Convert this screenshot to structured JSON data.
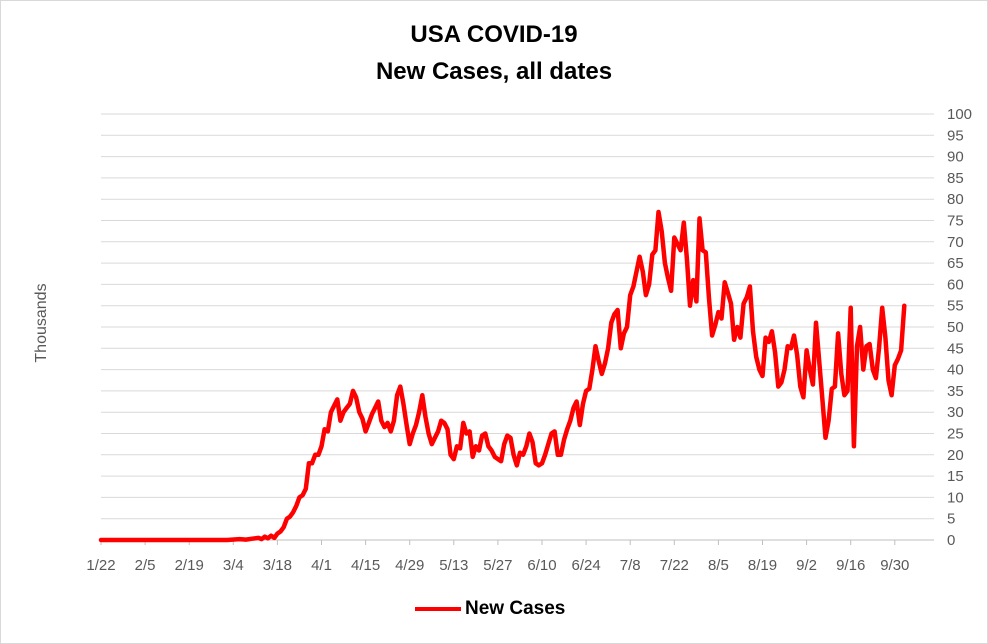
{
  "chart_data": {
    "type": "line",
    "title": "USA COVID-19",
    "subtitle": "New Cases, all dates",
    "ylabel": "Thousands",
    "xlabel": "",
    "ylim": [
      0,
      100
    ],
    "ytick_step": 5,
    "y_ticks": [
      "0",
      "5",
      "10",
      "15",
      "20",
      "25",
      "30",
      "35",
      "40",
      "45",
      "50",
      "55",
      "60",
      "65",
      "70",
      "75",
      "80",
      "85",
      "90",
      "95",
      "100"
    ],
    "x_tick_labels": [
      "1/22",
      "2/5",
      "2/19",
      "3/4",
      "3/18",
      "4/1",
      "4/15",
      "4/29",
      "5/13",
      "5/27",
      "6/10",
      "6/24",
      "7/8",
      "7/22",
      "8/5",
      "8/19",
      "9/2",
      "9/16",
      "9/30"
    ],
    "x_tick_days": [
      0,
      14,
      28,
      42,
      56,
      70,
      84,
      98,
      112,
      126,
      140,
      154,
      168,
      182,
      196,
      210,
      224,
      238,
      252
    ],
    "x_range_days": [
      0,
      254
    ],
    "y_axis_position": "right",
    "grid": true,
    "legend_position": "bottom",
    "series": [
      {
        "name": "New Cases",
        "color": "#ff0000",
        "points": [
          [
            0,
            0
          ],
          [
            10,
            0
          ],
          [
            20,
            0
          ],
          [
            30,
            0
          ],
          [
            40,
            0
          ],
          [
            44,
            0.2
          ],
          [
            46,
            0.1
          ],
          [
            48,
            0.3
          ],
          [
            50,
            0.5
          ],
          [
            51,
            0.2
          ],
          [
            52,
            0.8
          ],
          [
            53,
            0.4
          ],
          [
            54,
            1.0
          ],
          [
            55,
            0.5
          ],
          [
            56,
            1.5
          ],
          [
            57,
            2.0
          ],
          [
            58,
            3.0
          ],
          [
            59,
            5.0
          ],
          [
            60,
            5.5
          ],
          [
            61,
            6.5
          ],
          [
            62,
            8.0
          ],
          [
            63,
            10.0
          ],
          [
            64,
            10.5
          ],
          [
            65,
            12.0
          ],
          [
            66,
            18.0
          ],
          [
            67,
            18.0
          ],
          [
            68,
            20.0
          ],
          [
            69,
            20.0
          ],
          [
            70,
            22.0
          ],
          [
            71,
            26.0
          ],
          [
            72,
            25.5
          ],
          [
            73,
            30.0
          ],
          [
            74,
            31.5
          ],
          [
            75,
            33.0
          ],
          [
            76,
            28.0
          ],
          [
            77,
            30.0
          ],
          [
            78,
            31.0
          ],
          [
            79,
            32.0
          ],
          [
            80,
            35.0
          ],
          [
            81,
            33.5
          ],
          [
            82,
            30.0
          ],
          [
            83,
            28.5
          ],
          [
            84,
            25.5
          ],
          [
            85,
            27.5
          ],
          [
            86,
            29.5
          ],
          [
            87,
            31.0
          ],
          [
            88,
            32.5
          ],
          [
            89,
            28.0
          ],
          [
            90,
            26.5
          ],
          [
            91,
            27.5
          ],
          [
            92,
            25.5
          ],
          [
            93,
            28.0
          ],
          [
            94,
            34.0
          ],
          [
            95,
            36.0
          ],
          [
            96,
            32.0
          ],
          [
            97,
            27.0
          ],
          [
            98,
            22.5
          ],
          [
            99,
            25.0
          ],
          [
            100,
            27.0
          ],
          [
            101,
            30.0
          ],
          [
            102,
            34.0
          ],
          [
            103,
            29.0
          ],
          [
            104,
            25.0
          ],
          [
            105,
            22.5
          ],
          [
            106,
            24.0
          ],
          [
            107,
            25.5
          ],
          [
            108,
            28.0
          ],
          [
            109,
            27.5
          ],
          [
            110,
            26.0
          ],
          [
            111,
            20.0
          ],
          [
            112,
            19.0
          ],
          [
            113,
            22.0
          ],
          [
            114,
            21.5
          ],
          [
            115,
            27.5
          ],
          [
            116,
            25.0
          ],
          [
            117,
            25.5
          ],
          [
            118,
            19.5
          ],
          [
            119,
            22.0
          ],
          [
            120,
            21.0
          ],
          [
            121,
            24.5
          ],
          [
            122,
            25.0
          ],
          [
            123,
            22.0
          ],
          [
            124,
            21.0
          ],
          [
            125,
            19.5
          ],
          [
            126,
            19.0
          ],
          [
            127,
            18.5
          ],
          [
            128,
            22.5
          ],
          [
            129,
            24.5
          ],
          [
            130,
            24.0
          ],
          [
            131,
            20.0
          ],
          [
            132,
            17.5
          ],
          [
            133,
            20.5
          ],
          [
            134,
            20.0
          ],
          [
            135,
            22.0
          ],
          [
            136,
            25.0
          ],
          [
            137,
            23.0
          ],
          [
            138,
            18.0
          ],
          [
            139,
            17.5
          ],
          [
            140,
            18.0
          ],
          [
            141,
            20.0
          ],
          [
            142,
            22.5
          ],
          [
            143,
            25.0
          ],
          [
            144,
            25.5
          ],
          [
            145,
            20.0
          ],
          [
            146,
            20.0
          ],
          [
            147,
            23.5
          ],
          [
            148,
            26.0
          ],
          [
            149,
            28.0
          ],
          [
            150,
            31.0
          ],
          [
            151,
            32.5
          ],
          [
            152,
            27.0
          ],
          [
            153,
            32.0
          ],
          [
            154,
            35.0
          ],
          [
            155,
            35.5
          ],
          [
            156,
            40.0
          ],
          [
            157,
            45.5
          ],
          [
            158,
            42.0
          ],
          [
            159,
            39.0
          ],
          [
            160,
            41.5
          ],
          [
            161,
            45.0
          ],
          [
            162,
            51.0
          ],
          [
            163,
            53.0
          ],
          [
            164,
            54.0
          ],
          [
            165,
            45.0
          ],
          [
            166,
            48.5
          ],
          [
            167,
            50.0
          ],
          [
            168,
            57.5
          ],
          [
            169,
            59.5
          ],
          [
            170,
            63.0
          ],
          [
            171,
            66.5
          ],
          [
            172,
            63.0
          ],
          [
            173,
            57.5
          ],
          [
            174,
            60.0
          ],
          [
            175,
            67.0
          ],
          [
            176,
            68.0
          ],
          [
            177,
            77.0
          ],
          [
            178,
            72.5
          ],
          [
            179,
            65.0
          ],
          [
            180,
            61.5
          ],
          [
            181,
            58.5
          ],
          [
            182,
            71.0
          ],
          [
            183,
            69.5
          ],
          [
            184,
            68.0
          ],
          [
            185,
            74.5
          ],
          [
            186,
            66.0
          ],
          [
            187,
            55.0
          ],
          [
            188,
            61.0
          ],
          [
            189,
            56.0
          ],
          [
            190,
            75.5
          ],
          [
            191,
            68.0
          ],
          [
            192,
            67.5
          ],
          [
            193,
            57.0
          ],
          [
            194,
            48.0
          ],
          [
            195,
            50.5
          ],
          [
            196,
            53.5
          ],
          [
            197,
            52.0
          ],
          [
            198,
            60.5
          ],
          [
            199,
            58.0
          ],
          [
            200,
            55.5
          ],
          [
            201,
            47.0
          ],
          [
            202,
            50.0
          ],
          [
            203,
            47.5
          ],
          [
            204,
            55.5
          ],
          [
            205,
            57.0
          ],
          [
            206,
            59.5
          ],
          [
            207,
            49.0
          ],
          [
            208,
            43.0
          ],
          [
            209,
            40.0
          ],
          [
            210,
            38.5
          ],
          [
            211,
            47.5
          ],
          [
            212,
            46.5
          ],
          [
            213,
            49.0
          ],
          [
            214,
            44.0
          ],
          [
            215,
            36.0
          ],
          [
            216,
            37.0
          ],
          [
            217,
            40.0
          ],
          [
            218,
            45.5
          ],
          [
            219,
            45.0
          ],
          [
            220,
            48.0
          ],
          [
            221,
            43.5
          ],
          [
            222,
            36.0
          ],
          [
            223,
            33.5
          ],
          [
            224,
            44.5
          ],
          [
            225,
            40.0
          ],
          [
            226,
            36.5
          ],
          [
            227,
            51.0
          ],
          [
            228,
            42.0
          ],
          [
            229,
            33.0
          ],
          [
            230,
            24.0
          ],
          [
            231,
            28.0
          ],
          [
            232,
            35.5
          ],
          [
            233,
            36.0
          ],
          [
            234,
            48.5
          ],
          [
            235,
            39.0
          ],
          [
            236,
            34.0
          ],
          [
            237,
            35.0
          ],
          [
            238,
            54.5
          ],
          [
            239,
            22.0
          ],
          [
            240,
            45.5
          ],
          [
            241,
            50.0
          ],
          [
            242,
            40.0
          ],
          [
            243,
            45.5
          ],
          [
            244,
            46.0
          ],
          [
            245,
            40.0
          ],
          [
            246,
            38.0
          ],
          [
            247,
            45.0
          ],
          [
            248,
            54.5
          ],
          [
            249,
            47.5
          ],
          [
            250,
            37.5
          ],
          [
            251,
            34.0
          ],
          [
            252,
            41.0
          ],
          [
            253,
            42.5
          ],
          [
            254,
            44.5
          ],
          [
            255,
            55.0
          ]
        ]
      }
    ]
  }
}
